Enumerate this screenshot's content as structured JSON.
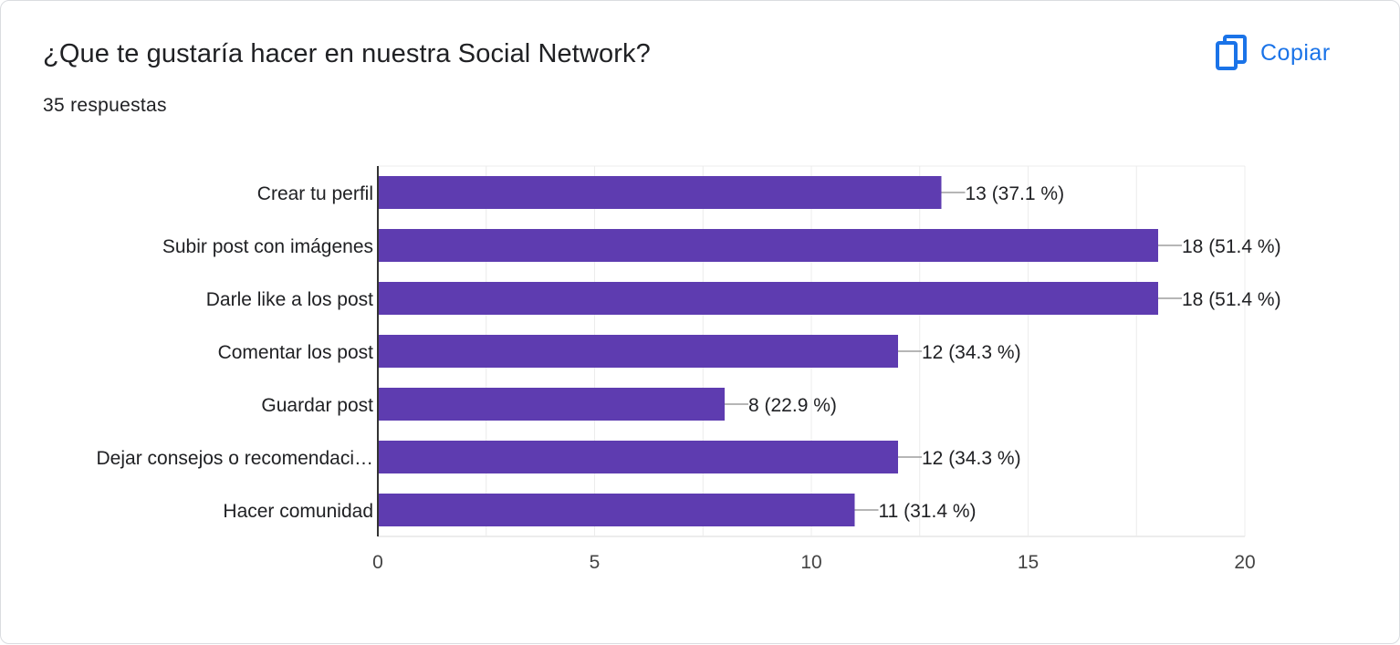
{
  "header": {
    "title": "¿Que te gustaría hacer en nuestra Social Network?",
    "subtitle": "35 respuestas",
    "copy_label": "Copiar",
    "copy_icon": "copy-icon"
  },
  "colors": {
    "bar": "#5e3cb0",
    "accent": "#1a73e8",
    "text": "#202124",
    "grid": "#ececec"
  },
  "chart_data": {
    "type": "bar",
    "orientation": "horizontal",
    "categories": [
      "Crear tu perfil",
      "Subir post con imágenes",
      "Darle like a los post",
      "Comentar los post",
      "Guardar post",
      "Dejar consejos o recomendaci…",
      "Hacer comunidad"
    ],
    "values": [
      13,
      18,
      18,
      12,
      8,
      12,
      11
    ],
    "data_labels": [
      "13 (37.1 %)",
      "18 (51.4 %)",
      "18 (51.4 %)",
      "12 (34.3 %)",
      "8 (22.9 %)",
      "12 (34.3 %)",
      "11 (31.4 %)"
    ],
    "xlim": [
      0,
      20
    ],
    "x_ticks": [
      "0",
      "5",
      "10",
      "15",
      "20"
    ],
    "grid": true
  }
}
